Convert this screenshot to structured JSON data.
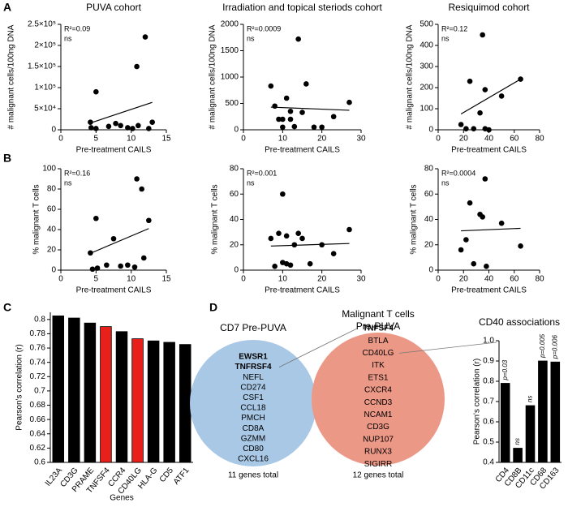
{
  "panel_labels": [
    "A",
    "B",
    "C",
    "D"
  ],
  "chart_data": [
    {
      "type": "scatter",
      "title": "PUVA cohort",
      "xlabel": "Pre-treatment CAILS",
      "ylabel": "# malignant cells/100ng DNA",
      "color": "#000000",
      "x": [
        4.2,
        4.3,
        5,
        5,
        6.8,
        7.8,
        8.5,
        9.5,
        10.2,
        10.8,
        11,
        12,
        12.5,
        13
      ],
      "y": [
        18000,
        5000,
        3000,
        90000,
        8000,
        15000,
        10000,
        5000,
        3000,
        150000,
        10000,
        220000,
        3000,
        18000
      ],
      "trend": {
        "x": [
          4,
          13
        ],
        "y": [
          15000,
          65000
        ]
      },
      "annotations": [
        "R²=0.09",
        "ns"
      ],
      "xlim": [
        0,
        15
      ],
      "xticks": [
        0,
        5,
        10,
        15
      ],
      "ylim": [
        0,
        250000
      ],
      "yticks": [
        0,
        {
          "value": 50000,
          "label": "5×10⁴"
        },
        {
          "value": 100000,
          "label": "1×10⁵"
        },
        {
          "value": 150000,
          "label": "1.5×10⁵"
        },
        {
          "value": 200000,
          "label": "2×10⁵"
        },
        {
          "value": 250000,
          "label": "2.5×10⁵"
        }
      ]
    },
    {
      "type": "scatter",
      "title": "Irradiation and topical steriods cohort",
      "xlabel": "Pre-treatment CAILS",
      "ylabel": "# malignant cells/100ng DNA",
      "color": "#000000",
      "x": [
        7,
        8,
        9,
        10,
        10,
        11,
        12,
        12,
        13,
        14,
        15,
        16,
        18,
        20,
        23,
        27
      ],
      "y": [
        830,
        450,
        200,
        50,
        200,
        600,
        350,
        200,
        60,
        1720,
        330,
        870,
        50,
        50,
        250,
        520
      ],
      "trend": {
        "x": [
          7,
          27
        ],
        "y": [
          430,
          370
        ]
      },
      "annotations": [
        "R²=0.0009",
        "ns"
      ],
      "xlim": [
        0,
        30
      ],
      "xticks": [
        0,
        10,
        20,
        30
      ],
      "ylim": [
        0,
        2000
      ],
      "yticks": [
        0,
        500,
        1000,
        1500,
        2000
      ]
    },
    {
      "type": "scatter",
      "title": "Resiquimod cohort",
      "xlabel": "Pre-treatment CAILS",
      "ylabel": "# malignant cells/100ng DNA",
      "color": "#000000",
      "x": [
        18,
        22,
        25,
        28,
        33,
        35,
        37,
        37,
        40,
        50,
        65
      ],
      "y": [
        25,
        5,
        230,
        5,
        80,
        450,
        190,
        5,
        0,
        160,
        240
      ],
      "trend": {
        "x": [
          18,
          65
        ],
        "y": [
          75,
          240
        ]
      },
      "annotations": [
        "R²=0.12",
        "ns"
      ],
      "xlim": [
        0,
        80
      ],
      "xticks": [
        0,
        20,
        40,
        60,
        80
      ],
      "ylim": [
        0,
        500
      ],
      "yticks": [
        0,
        100,
        200,
        300,
        400,
        500
      ]
    },
    {
      "type": "scatter",
      "xlabel": "Pre-treatment CAILS",
      "ylabel": "% malignant T cells",
      "color": "#000000",
      "x": [
        4.2,
        4.5,
        5,
        5.2,
        6.5,
        7.5,
        8.5,
        9.5,
        10.5,
        10.8,
        11.5,
        11.8,
        12.5
      ],
      "y": [
        17,
        1,
        51,
        2,
        5,
        31,
        4,
        5,
        3,
        90,
        80,
        12,
        49
      ],
      "trend": {
        "x": [
          4,
          12.5
        ],
        "y": [
          16,
          41
        ]
      },
      "annotations": [
        "R²=0.16",
        "ns"
      ],
      "xlim": [
        0,
        15
      ],
      "xticks": [
        0,
        5,
        10,
        15
      ],
      "ylim": [
        0,
        100
      ],
      "yticks": [
        0,
        20,
        40,
        60,
        80,
        100
      ]
    },
    {
      "type": "scatter",
      "xlabel": "Pre-treatment CAILS",
      "ylabel": "% malignant T cells",
      "color": "#000000",
      "x": [
        7,
        8,
        9,
        10,
        10,
        11,
        11,
        12,
        13,
        14,
        15,
        17,
        20,
        23,
        27
      ],
      "y": [
        25,
        3,
        29,
        60,
        6,
        5,
        27,
        4,
        20,
        29,
        25,
        5,
        20,
        13,
        32
      ],
      "trend": {
        "x": [
          7,
          27
        ],
        "y": [
          19,
          21
        ]
      },
      "annotations": [
        "R²=0.001",
        "ns"
      ],
      "xlim": [
        0,
        30
      ],
      "xticks": [
        0,
        10,
        20,
        30
      ],
      "ylim": [
        0,
        80
      ],
      "yticks": [
        0,
        20,
        40,
        60,
        80
      ]
    },
    {
      "type": "scatter",
      "xlabel": "Pre-treatment CAILS",
      "ylabel": "% malignant T cells",
      "color": "#000000",
      "x": [
        18,
        22,
        25,
        28,
        33,
        35,
        37,
        38,
        50,
        65
      ],
      "y": [
        16,
        24,
        53,
        5,
        44,
        42,
        72,
        3,
        37,
        19
      ],
      "trend": {
        "x": [
          18,
          65
        ],
        "y": [
          31,
          33
        ]
      },
      "annotations": [
        "R²=0.0004",
        "ns"
      ],
      "xlim": [
        0,
        80
      ],
      "xticks": [
        0,
        20,
        40,
        60,
        80
      ],
      "ylim": [
        0,
        80
      ],
      "yticks": [
        0,
        20,
        40,
        60,
        80
      ]
    },
    {
      "type": "bar",
      "xlabel": "Genes",
      "ylabel": "Pearson's correlation (r)",
      "categories": [
        "IL23A",
        "CD3G",
        "PRAME",
        "TNFSF4",
        "CCR4",
        "CD40LG",
        "HLA-G",
        "CD5",
        "ATF1"
      ],
      "values": [
        0.805,
        0.802,
        0.795,
        0.79,
        0.783,
        0.773,
        0.77,
        0.768,
        0.765
      ],
      "colors": [
        "#000000",
        "#000000",
        "#000000",
        "#e8201c",
        "#000000",
        "#e8201c",
        "#000000",
        "#000000",
        "#000000"
      ],
      "ylim": [
        0.6,
        0.81
      ],
      "yticks": [
        0.6,
        0.62,
        0.64,
        0.66,
        0.68,
        0.7,
        0.72,
        0.74,
        0.76,
        0.78,
        0.8
      ]
    },
    {
      "type": "bar",
      "title": "CD40 associations",
      "ylabel": "Pearson's correlation (r)",
      "categories": [
        "CD4",
        "CD8B",
        "CD11c",
        "CD68",
        "CD163"
      ],
      "values": [
        0.79,
        0.47,
        0.68,
        0.9,
        0.895
      ],
      "annotations": [
        "p=0.03",
        "ns",
        "ns",
        "p=0.005",
        "p=0.006"
      ],
      "colors": [
        "#000000",
        "#000000",
        "#000000",
        "#000000",
        "#000000"
      ],
      "ylim": [
        0.4,
        1.0
      ],
      "yticks": [
        0.4,
        0.5,
        0.6,
        0.7,
        0.8,
        0.9,
        {
          "value": 1,
          "label": "1.0"
        }
      ]
    }
  ],
  "venn": {
    "sets": [
      {
        "title": [
          "CD7 Pre-PUVA"
        ],
        "color": "#a8c8e6",
        "emphasized": [
          0,
          1
        ],
        "genes": [
          "EWSR1",
          "TNFRSF4",
          "NEFL",
          "CD274",
          "CSF1",
          "CCL18",
          "PMCH",
          "CD8A",
          "GZMM",
          "CD80",
          "CXCL16"
        ],
        "total": "11 genes total"
      },
      {
        "title": [
          "Malignant T cells",
          "Pre-PUVA"
        ],
        "color": "#ec9886",
        "emphasized": [
          0
        ],
        "genes": [
          "TNFSF4",
          "BTLA",
          "CD40LG",
          "ITK",
          "ETS1",
          "CXCR4",
          "CCND3",
          "NCAM1",
          "CD3G",
          "NUP107",
          "RUNX3",
          "SIGIRR"
        ],
        "total": "12 genes total"
      }
    ]
  }
}
